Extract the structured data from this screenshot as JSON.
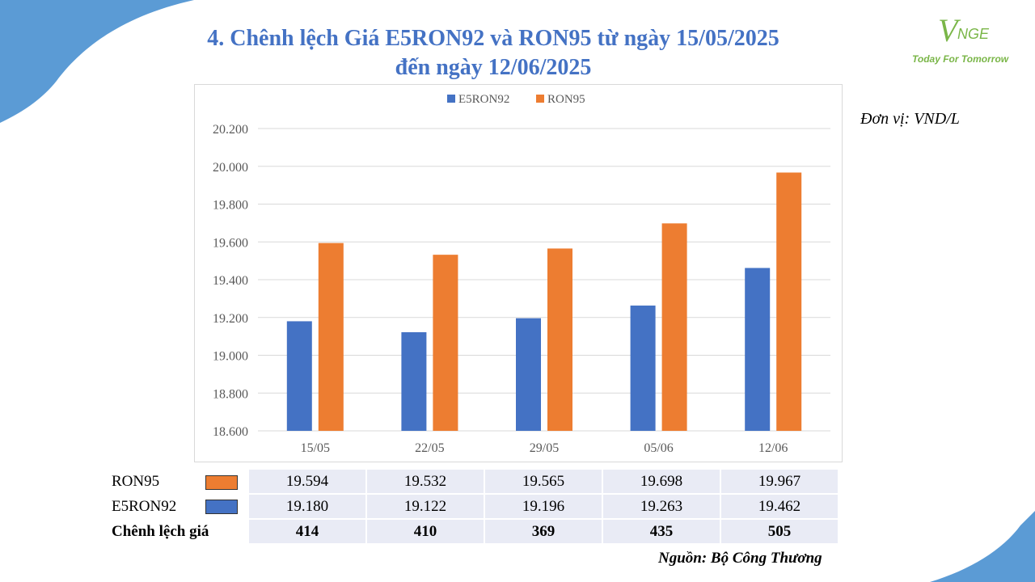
{
  "title": {
    "line1": "4. Chênh lệch Giá E5RON92 và RON95 từ ngày 15/05/2025",
    "line2": "đến ngày 12/06/2025"
  },
  "logo": {
    "mark": "V",
    "mark_rest": "NGE",
    "tagline": "Today For Tomorrow"
  },
  "unit": "Đơn vị: VND/L",
  "source": "Nguồn: Bộ Công Thương",
  "colors": {
    "e5ron92": "#4472c4",
    "ron95": "#ed7d31",
    "title": "#4472c4",
    "logo": "#7ab648",
    "decor": "#5b9bd5"
  },
  "chart_data": {
    "type": "bar",
    "categories": [
      "15/05",
      "22/05",
      "29/05",
      "05/06",
      "12/06"
    ],
    "series": [
      {
        "name": "E5RON92",
        "values": [
          19180,
          19122,
          19196,
          19263,
          19462
        ]
      },
      {
        "name": "RON95",
        "values": [
          19594,
          19532,
          19565,
          19698,
          19967
        ]
      }
    ],
    "ylim": [
      18600,
      20200
    ],
    "yticks": [
      18600,
      18800,
      19000,
      19200,
      19400,
      19600,
      19800,
      20000,
      20200
    ],
    "ytick_labels": [
      "18.600",
      "18.800",
      "19.000",
      "19.200",
      "19.400",
      "19.600",
      "19.800",
      "20.000",
      "20.200"
    ],
    "legend_position": "top-center",
    "grid": true,
    "xlabel": "",
    "ylabel": ""
  },
  "table": {
    "rows": [
      {
        "label": "RON95",
        "values": [
          "19.594",
          "19.532",
          "19.565",
          "19.698",
          "19.967"
        ]
      },
      {
        "label": "E5RON92",
        "values": [
          "19.180",
          "19.122",
          "19.196",
          "19.263",
          "19.462"
        ]
      },
      {
        "label": "Chênh lệch giá",
        "values": [
          "414",
          "410",
          "369",
          "435",
          "505"
        ]
      }
    ]
  }
}
